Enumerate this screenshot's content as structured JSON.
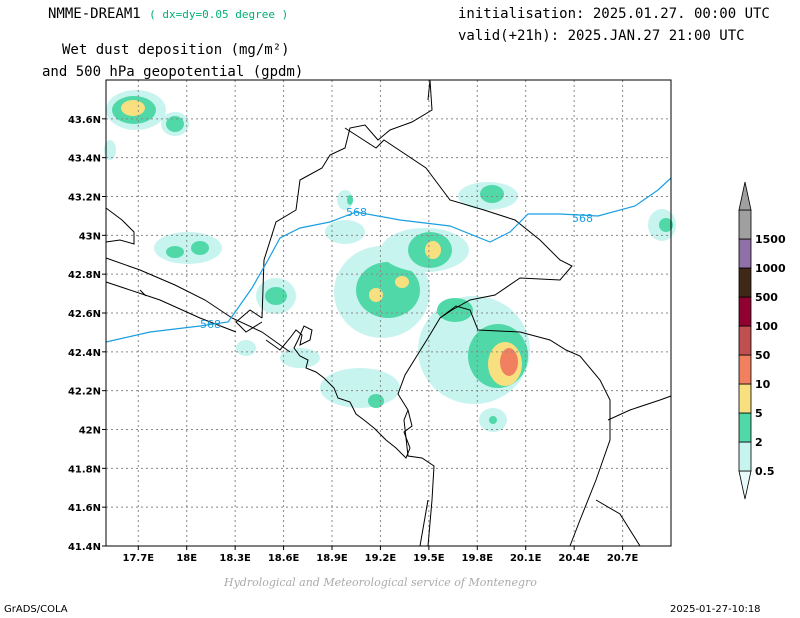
{
  "header": {
    "model": "NMME-DREAM1",
    "resolution": "( dx=dy=0.05 degree )",
    "initialisation": "initialisation: 2025.01.27. 00:00 UTC",
    "valid": "valid(+21h): 2025.JAN.27 21:00 UTC",
    "title_line1": "Wet dust deposition (mg/m²)",
    "title_line2": "and 500 hPa geopotential (gpdm)"
  },
  "footer": {
    "credit": "Hydrological and Meteorological service of Montenegro",
    "software": "GrADS/COLA",
    "timestamp": "2025-01-27-10:18"
  },
  "map": {
    "lon_range": [
      17.5,
      21.0
    ],
    "lat_range": [
      41.4,
      43.8
    ],
    "lon_ticks": [
      "17.7E",
      "18E",
      "18.3E",
      "18.6E",
      "18.9E",
      "19.2E",
      "19.5E",
      "19.8E",
      "20.1E",
      "20.4E",
      "20.7E"
    ],
    "lon_tick_values": [
      17.7,
      18.0,
      18.3,
      18.6,
      18.9,
      19.2,
      19.5,
      19.8,
      20.1,
      20.4,
      20.7
    ],
    "lat_ticks": [
      "41.4N",
      "41.6N",
      "41.8N",
      "42N",
      "42.2N",
      "42.4N",
      "42.6N",
      "42.8N",
      "43N",
      "43.2N",
      "43.4N",
      "43.6N"
    ],
    "lat_tick_values": [
      41.4,
      41.6,
      41.8,
      42.0,
      42.2,
      42.4,
      42.6,
      42.8,
      43.0,
      43.2,
      43.4,
      43.6
    ],
    "gridlines": true,
    "contour_label": "568",
    "contour_color": "#1a9fe0"
  },
  "legend": {
    "labels": [
      "0.5",
      "2",
      "5",
      "10",
      "50",
      "100",
      "500",
      "1000",
      "1500"
    ],
    "colors": [
      "#c8f4f0",
      "#50d8a8",
      "#f8e080",
      "#f08060",
      "#c05050",
      "#900030",
      "#402818",
      "#9070a8",
      "#a0a0a0"
    ]
  }
}
